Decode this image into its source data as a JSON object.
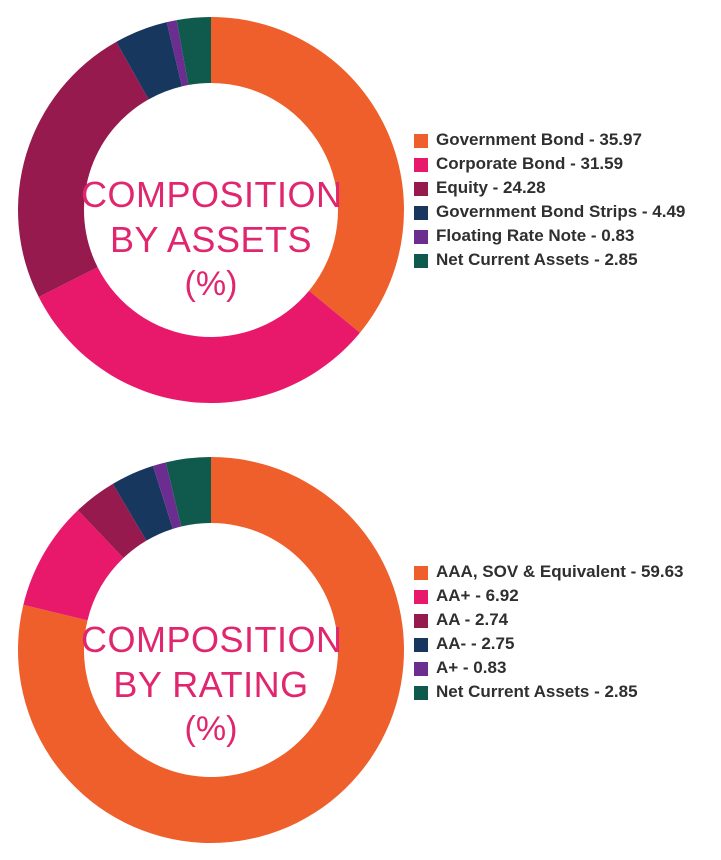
{
  "chart_data": [
    {
      "type": "pie",
      "title_lines": [
        "COMPOSITION",
        "BY ASSETS"
      ],
      "unit": "(%)",
      "slices": [
        {
          "label": "Government Bond - 35.97",
          "value": 35.97,
          "color": "#ee5f2b"
        },
        {
          "label": "Corporate Bond - 31.59",
          "value": 31.59,
          "color": "#e8196b"
        },
        {
          "label": "Equity - 24.28",
          "value": 24.28,
          "color": "#971a4f"
        },
        {
          "label": "Government Bond Strips - 4.49",
          "value": 4.49,
          "color": "#17375e"
        },
        {
          "label": "Floating Rate Note - 0.83",
          "value": 0.83,
          "color": "#6c2d91"
        },
        {
          "label": "Net Current Assets - 2.85",
          "value": 2.85,
          "color": "#0f5a4c"
        }
      ]
    },
    {
      "type": "pie",
      "title_lines": [
        "COMPOSITION",
        "BY RATING"
      ],
      "unit": "(%)",
      "slices": [
        {
          "label": "AAA, SOV & Equivalent - 59.63",
          "value": 59.63,
          "color": "#ee5f2b"
        },
        {
          "label": "AA+ - 6.92",
          "value": 6.92,
          "color": "#e8196b"
        },
        {
          "label": "AA - 2.74",
          "value": 2.74,
          "color": "#971a4f"
        },
        {
          "label": "AA- - 2.75",
          "value": 2.75,
          "color": "#17375e"
        },
        {
          "label": "A+ - 0.83",
          "value": 0.83,
          "color": "#6c2d91"
        },
        {
          "label": "Net Current Assets - 2.85",
          "value": 2.85,
          "color": "#0f5a4c"
        }
      ]
    }
  ]
}
